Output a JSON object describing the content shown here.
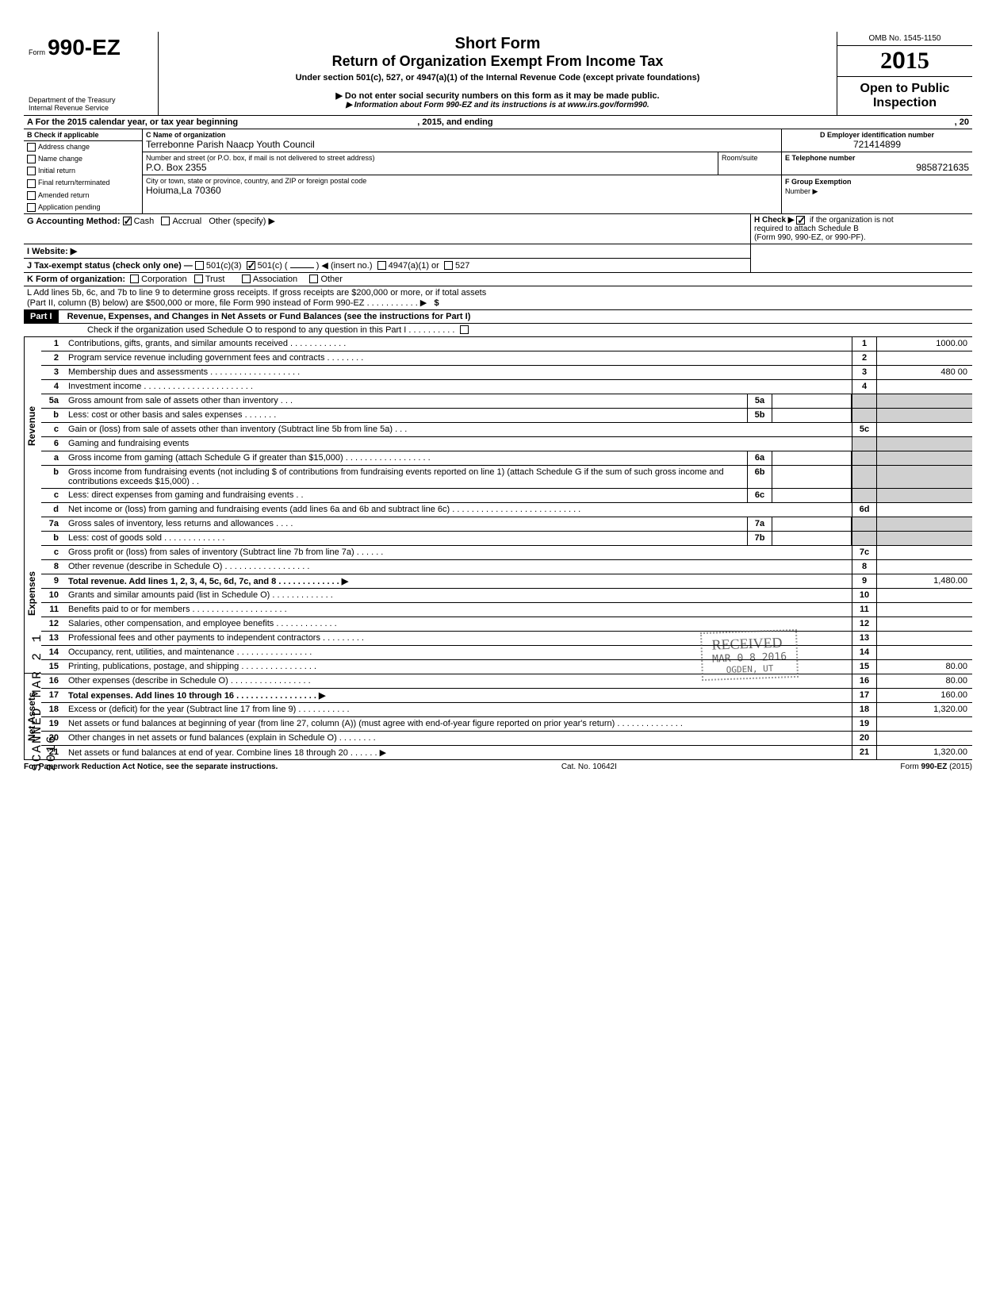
{
  "header": {
    "form_prefix": "Form",
    "form_number": "990-EZ",
    "dept": "Department of the Treasury",
    "irs": "Internal Revenue Service",
    "title1": "Short Form",
    "title2": "Return of Organization Exempt From Income Tax",
    "subtitle": "Under section 501(c), 527, or 4947(a)(1) of the Internal Revenue Code (except private foundations)",
    "note1": "Do not enter social security numbers on this form as it may be made public.",
    "note2": "Information about Form 990-EZ and its instructions is at www.irs.gov/form990.",
    "omb": "OMB No. 1545-1150",
    "year": "2015",
    "open": "Open to Public Inspection"
  },
  "sectionA": {
    "label": "A  For the 2015 calendar year, or tax year beginning",
    "mid": ", 2015, and ending",
    "end": ", 20"
  },
  "sectionB": {
    "label": "B  Check if applicable",
    "items": [
      "Address change",
      "Name change",
      "Initial return",
      "Final return/terminated",
      "Amended return",
      "Application pending"
    ]
  },
  "sectionC": {
    "label": "C  Name of organization",
    "name": "Terrebonne Parish Naacp Youth Council",
    "addr_label": "Number and street (or P.O. box, if mail is not delivered to street address)",
    "room": "Room/suite",
    "addr": "P.O. Box 2355",
    "city_label": "City or town, state or province, country, and ZIP or foreign postal code",
    "city": "Hoiuma,La 70360"
  },
  "sectionD": {
    "label": "D Employer identification number",
    "value": "721414899"
  },
  "sectionE": {
    "label": "E Telephone number",
    "value": "9858721635"
  },
  "sectionF": {
    "label": "F Group Exemption",
    "label2": "Number ▶"
  },
  "sectionG": {
    "label": "G  Accounting Method:",
    "cash": "Cash",
    "accrual": "Accrual",
    "other": "Other (specify) ▶"
  },
  "sectionH": {
    "line1": "H  Check ▶",
    "line1b": "if the organization is not",
    "line2": "required to attach Schedule B",
    "line3": "(Form 990, 990-EZ, or 990-PF)."
  },
  "sectionI": {
    "label": "I   Website: ▶"
  },
  "sectionJ": {
    "label": "J  Tax-exempt status (check only one) —",
    "a": "501(c)(3)",
    "b": "501(c) (",
    "c": ") ◀ (insert no.)",
    "d": "4947(a)(1) or",
    "e": "527"
  },
  "sectionK": {
    "label": "K  Form of organization:",
    "corp": "Corporation",
    "trust": "Trust",
    "assoc": "Association",
    "other": "Other"
  },
  "sectionL": {
    "line1": "L  Add lines 5b, 6c, and 7b to line 9 to determine gross receipts. If gross receipts are $200,000 or more, or if total assets",
    "line2": "(Part II, column (B) below) are $500,000 or more, file Form 990 instead of Form 990-EZ .   .   .   .   .   .   .   .   .   .   .   ▶",
    "sym": "$"
  },
  "part1": {
    "title": "Revenue, Expenses, and Changes in Net Assets or Fund Balances (see the instructions for Part I)",
    "schedO": "Check if the organization used Schedule O to respond to any question in this Part I .   .   .   .   .   .   .   .   .   ."
  },
  "sidelabels": {
    "revenue": "Revenue",
    "expenses": "Expenses",
    "netassets": "Net Assets"
  },
  "lines": [
    {
      "n": "1",
      "d": "Contributions, gifts, grants, and similar amounts received .   .   .   .   .   .   .   .   .   .   .   .",
      "box": "1",
      "val": "1000.00"
    },
    {
      "n": "2",
      "d": "Program service revenue including government fees and contracts   .   .   .   .   .   .   .   .",
      "box": "2",
      "val": ""
    },
    {
      "n": "3",
      "d": "Membership dues and assessments .   .   .   .   .   .   .   .   .   .   .   .   .   .   .   .   .   .   .",
      "box": "3",
      "val": "480 00"
    },
    {
      "n": "4",
      "d": "Investment income    .   .   .   .   .   .   .   .   .   .   .   .   .   .   .   .   .   .   .   .   .   .   .",
      "box": "4",
      "val": ""
    },
    {
      "n": "5a",
      "d": "Gross amount from sale of assets other than inventory   .   .   .",
      "ibox": "5a",
      "shade": true
    },
    {
      "n": "b",
      "d": "Less: cost or other basis and sales expenses .   .   .   .   .   .   .",
      "ibox": "5b",
      "shade": true
    },
    {
      "n": "c",
      "d": "Gain or (loss) from sale of assets other than inventory (Subtract line 5b from line 5a)  .   .   .",
      "box": "5c",
      "val": ""
    },
    {
      "n": "6",
      "d": "Gaming and fundraising events",
      "shade": true,
      "noline": true
    },
    {
      "n": "a",
      "d": "Gross income from gaming (attach Schedule G if greater than $15,000) .   .   .   .   .   .   .   .   .   .   .   .   .   .   .   .   .   .",
      "ibox": "6a",
      "shade": true
    },
    {
      "n": "b",
      "d": "Gross income from fundraising events (not including  $                           of contributions from fundraising events reported on line 1) (attach Schedule G if the sum of such gross income and contributions exceeds $15,000) .   .",
      "ibox": "6b",
      "shade": true
    },
    {
      "n": "c",
      "d": "Less: direct expenses from gaming and fundraising events   .   .",
      "ibox": "6c",
      "shade": true
    },
    {
      "n": "d",
      "d": "Net income or (loss) from gaming and fundraising events (add lines 6a and 6b and subtract line 6c)    .   .   .   .   .   .   .   .   .   .   .   .   .   .   .   .   .   .   .   .   .   .   .   .   .   .   .",
      "box": "6d",
      "val": ""
    },
    {
      "n": "7a",
      "d": "Gross sales of inventory, less returns and allowances   .   .   .   .",
      "ibox": "7a",
      "shade": true
    },
    {
      "n": "b",
      "d": "Less: cost of goods sold     .   .   .   .   .   .   .   .   .   .   .   .   .",
      "ibox": "7b",
      "shade": true
    },
    {
      "n": "c",
      "d": "Gross profit or (loss) from sales of inventory (Subtract line 7b from line 7a)  .   .   .   .   .   .",
      "box": "7c",
      "val": ""
    },
    {
      "n": "8",
      "d": "Other revenue (describe in Schedule O) .   .   .   .   .   .   .   .   .   .   .   .   .   .   .   .   .   .",
      "box": "8",
      "val": ""
    },
    {
      "n": "9",
      "d": "Total revenue. Add lines 1, 2, 3, 4, 5c, 6d, 7c, and 8   .   .   .   .   .   .   .   .   .   .   .   .   . ▶",
      "box": "9",
      "val": "1,480.00",
      "bold": true
    },
    {
      "n": "10",
      "d": "Grants and similar amounts paid (list in Schedule O)    .   .   .   .   .   .   .   .   .   .   .   .   .",
      "box": "10",
      "val": ""
    },
    {
      "n": "11",
      "d": "Benefits paid to or for members   .   .   .   .   .   .   .   .   .   .   .   .   .   .   .   .   .   .   .   .",
      "box": "11",
      "val": ""
    },
    {
      "n": "12",
      "d": "Salaries, other compensation, and employee benefits   .   .   .   .   .   .   .   .   .   .   .   .   .",
      "box": "12",
      "val": ""
    },
    {
      "n": "13",
      "d": "Professional fees and other payments to independent contractors   .   .   .   .   .   .   .   .   .",
      "box": "13",
      "val": ""
    },
    {
      "n": "14",
      "d": "Occupancy, rent, utilities, and maintenance    .   .   .   .   .   .   .   .   .   .   .   .   .   .   .   .",
      "box": "14",
      "val": ""
    },
    {
      "n": "15",
      "d": "Printing, publications, postage, and shipping .   .   .   .   .   .   .   .   .   .   .   .   .   .   .   .",
      "box": "15",
      "val": "80.00"
    },
    {
      "n": "16",
      "d": "Other expenses (describe in Schedule O)   .   .   .   .   .   .   .   .   .   .   .   .   .   .   .   .   .",
      "box": "16",
      "val": "80.00"
    },
    {
      "n": "17",
      "d": "Total expenses. Add lines 10 through 16 .   .   .   .   .   .   .   .   .   .   .   .   .   .   .   .   . ▶",
      "box": "17",
      "val": "160.00",
      "bold": true
    },
    {
      "n": "18",
      "d": "Excess or (deficit) for the year (Subtract line 17 from line 9)   .   .   .   .   .   .   .   .   .   .   .",
      "box": "18",
      "val": "1,320.00"
    },
    {
      "n": "19",
      "d": "Net assets or fund balances at beginning of year (from line 27, column (A)) (must agree with end-of-year figure reported on prior year's return)    .   .   .   .   .   .   .   .   .   .   .   .   .   .",
      "box": "19",
      "val": ""
    },
    {
      "n": "20",
      "d": "Other changes in net assets or fund balances (explain in Schedule O) .   .   .   .   .   .   .   .",
      "box": "20",
      "val": ""
    },
    {
      "n": "21",
      "d": "Net assets or fund balances at end of year. Combine lines 18 through 20   .   .   .   .   .   . ▶",
      "box": "21",
      "val": "1,320.00"
    }
  ],
  "footer": {
    "left": "For Paperwork Reduction Act Notice, see the separate instructions.",
    "mid": "Cat. No. 10642I",
    "right": "Form 990-EZ (2015)"
  },
  "stamps": {
    "side": "SCANNED MAR 2 1 2016",
    "received": "RECEIVED",
    "date": "MAR 0 8 2016",
    "ogden": "OGDEN, UT"
  }
}
